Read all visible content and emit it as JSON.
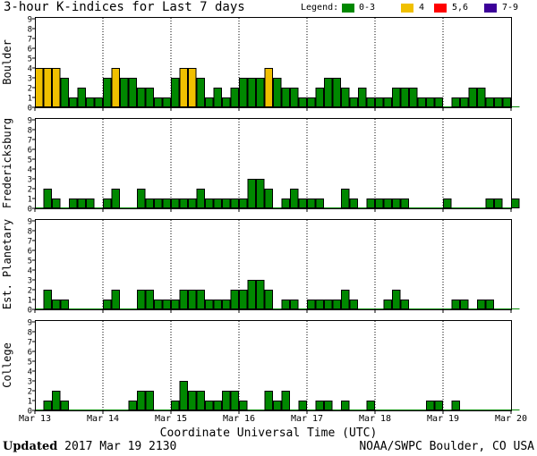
{
  "title": "3-hour K-indices for Last 7 days",
  "legend": {
    "label": "Legend:",
    "items": [
      {
        "text": "0-3",
        "color": "#008800"
      },
      {
        "text": "4",
        "color": "#f0c000"
      },
      {
        "text": "5,6",
        "color": "#ff0000"
      },
      {
        "text": "7-9",
        "color": "#3c0099"
      }
    ]
  },
  "x_title": "Coordinate Universal Time (UTC)",
  "footer": {
    "updated_label": "Updated",
    "updated_value": "2017 Mar 19 2130",
    "source": "NOAA/SWPC Boulder, CO USA"
  },
  "chart_data": [
    {
      "type": "bar",
      "ylabel": "Boulder",
      "ylim": [
        0,
        9
      ],
      "yticks": [
        0,
        1,
        2,
        3,
        4,
        5,
        6,
        7,
        8,
        9
      ],
      "xticks": [
        "Mar 13",
        "Mar 14",
        "Mar 15",
        "Mar 16",
        "Mar 17",
        "Mar 18",
        "Mar 19",
        "Mar 20"
      ],
      "values": [
        4,
        4,
        4,
        3,
        1,
        2,
        1,
        1,
        3,
        4,
        3,
        3,
        2,
        2,
        1,
        1,
        3,
        4,
        4,
        3,
        1,
        2,
        1,
        2,
        3,
        3,
        3,
        4,
        3,
        2,
        2,
        1,
        1,
        2,
        3,
        3,
        2,
        1,
        2,
        1,
        1,
        1,
        2,
        2,
        2,
        1,
        1,
        1,
        0,
        1,
        1,
        2,
        2,
        1,
        1,
        1,
        0
      ]
    },
    {
      "type": "bar",
      "ylabel": "Fredericksburg",
      "ylim": [
        0,
        9
      ],
      "yticks": [
        0,
        1,
        2,
        3,
        4,
        5,
        6,
        7,
        8,
        9
      ],
      "xticks": [
        "Mar 13",
        "Mar 14",
        "Mar 15",
        "Mar 16",
        "Mar 17",
        "Mar 18",
        "Mar 19",
        "Mar 20"
      ],
      "values": [
        0,
        2,
        1,
        0,
        1,
        1,
        1,
        0,
        1,
        2,
        0,
        0,
        2,
        1,
        1,
        1,
        1,
        1,
        1,
        2,
        1,
        1,
        1,
        1,
        1,
        3,
        3,
        2,
        0,
        1,
        2,
        1,
        1,
        1,
        0,
        0,
        2,
        1,
        0,
        1,
        1,
        1,
        1,
        1,
        0,
        0,
        0,
        0,
        1,
        0,
        0,
        0,
        0,
        1,
        1,
        0,
        1
      ]
    },
    {
      "type": "bar",
      "ylabel": "Est. Planetary",
      "ylim": [
        0,
        9
      ],
      "yticks": [
        0,
        1,
        2,
        3,
        4,
        5,
        6,
        7,
        8,
        9
      ],
      "xticks": [
        "Mar 13",
        "Mar 14",
        "Mar 15",
        "Mar 16",
        "Mar 17",
        "Mar 18",
        "Mar 19",
        "Mar 20"
      ],
      "values": [
        0,
        2,
        1,
        1,
        0,
        0,
        0,
        0,
        1,
        2,
        0,
        0,
        2,
        2,
        1,
        1,
        1,
        2,
        2,
        2,
        1,
        1,
        1,
        2,
        2,
        3,
        3,
        2,
        0,
        1,
        1,
        0,
        1,
        1,
        1,
        1,
        2,
        1,
        0,
        0,
        0,
        1,
        2,
        1,
        0,
        0,
        0,
        0,
        0,
        1,
        1,
        0,
        1,
        1,
        0,
        0,
        0
      ]
    },
    {
      "type": "bar",
      "ylabel": "College",
      "ylim": [
        0,
        9
      ],
      "yticks": [
        0,
        1,
        2,
        3,
        4,
        5,
        6,
        7,
        8,
        9
      ],
      "xticks": [
        "Mar 13",
        "Mar 14",
        "Mar 15",
        "Mar 16",
        "Mar 17",
        "Mar 18",
        "Mar 19",
        "Mar 20"
      ],
      "values": [
        0,
        1,
        2,
        1,
        0,
        0,
        0,
        0,
        0,
        0,
        0,
        1,
        2,
        2,
        0,
        0,
        1,
        3,
        2,
        2,
        1,
        1,
        2,
        2,
        1,
        0,
        0,
        2,
        1,
        2,
        0,
        1,
        0,
        1,
        1,
        0,
        1,
        0,
        0,
        1,
        0,
        0,
        0,
        0,
        0,
        0,
        1,
        1,
        0,
        1,
        0,
        0,
        0,
        0,
        0,
        0,
        0
      ]
    }
  ]
}
